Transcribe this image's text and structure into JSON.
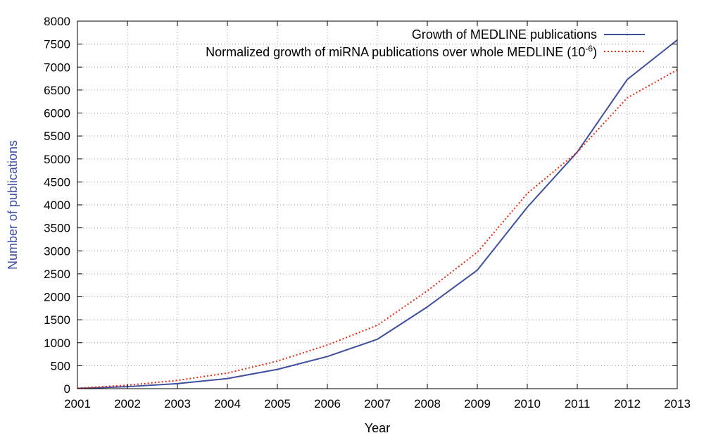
{
  "chart_data": {
    "type": "line",
    "xlabel": "Year",
    "ylabel": "Number of publications",
    "x": [
      2001,
      2002,
      2003,
      2004,
      2005,
      2006,
      2007,
      2008,
      2009,
      2010,
      2011,
      2012,
      2013
    ],
    "xlim": [
      2001,
      2013
    ],
    "ylim": [
      0,
      8000
    ],
    "yticks": [
      0,
      500,
      1000,
      1500,
      2000,
      2500,
      3000,
      3500,
      4000,
      4500,
      5000,
      5500,
      6000,
      6500,
      7000,
      7500,
      8000
    ],
    "xticks": [
      "2001",
      "2002",
      "2003",
      "2004",
      "2005",
      "2006",
      "2007",
      "2008",
      "2009",
      "2010",
      "2011",
      "2012",
      "2013"
    ],
    "grid": true,
    "legend_position": "top-right",
    "series": [
      {
        "name": "Growth of MEDLINE publications",
        "style": "solid",
        "color": "#3f4fa0",
        "values": [
          5,
          45,
          110,
          220,
          420,
          700,
          1075,
          1780,
          2580,
          3950,
          5150,
          6730,
          7590
        ]
      },
      {
        "name": "Normalized growth of miRNA publications over whole MEDLINE (10",
        "name_superscript": "-6",
        "name_suffix": ")",
        "style": "dotted",
        "color": "#e8290b",
        "values": [
          10,
          75,
          180,
          340,
          600,
          950,
          1380,
          2130,
          2970,
          4250,
          5150,
          6330,
          6940
        ]
      }
    ],
    "colors": {
      "axis": "#000000",
      "grid": "#a0a0a0",
      "ylabel": "#3f4fa0"
    }
  }
}
